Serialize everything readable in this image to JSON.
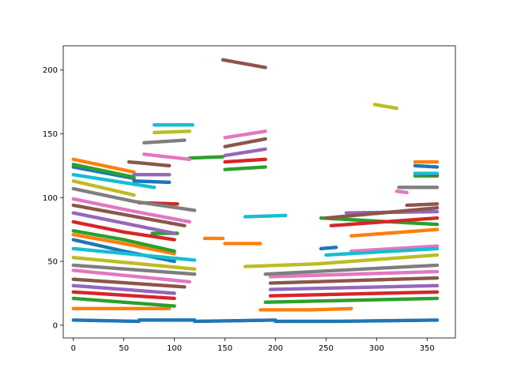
{
  "chart_data": {
    "type": "scatter",
    "title": "",
    "xlabel": "",
    "ylabel": "",
    "xlim": [
      -10,
      378
    ],
    "ylim": [
      -10,
      219
    ],
    "grid": false,
    "legend": "none",
    "xticks": [
      0,
      50,
      100,
      150,
      200,
      250,
      300,
      350
    ],
    "yticks": [
      0,
      50,
      100,
      150,
      200
    ],
    "series": [
      {
        "color": "#1f77b4",
        "segments": [
          {
            "x": [
              0,
              65
            ],
            "y": [
              4,
              3
            ]
          },
          {
            "x": [
              65,
              120
            ],
            "y": [
              4,
              4
            ]
          },
          {
            "x": [
              120,
              200
            ],
            "y": [
              3,
              4
            ]
          },
          {
            "x": [
              200,
              260
            ],
            "y": [
              3,
              3
            ]
          },
          {
            "x": [
              260,
              360
            ],
            "y": [
              3,
              4
            ]
          },
          {
            "x": [
              0,
              50
            ],
            "y": [
              67,
              58
            ]
          },
          {
            "x": [
              50,
              100
            ],
            "y": [
              58,
              50
            ]
          },
          {
            "x": [
              0,
              60
            ],
            "y": [
              124,
              115
            ]
          },
          {
            "x": [
              60,
              95
            ],
            "y": [
              113,
              112
            ]
          },
          {
            "x": [
              245,
              260
            ],
            "y": [
              60,
              61
            ]
          },
          {
            "x": [
              338,
              360
            ],
            "y": [
              125,
              124
            ]
          }
        ]
      },
      {
        "color": "#ff7f0e",
        "segments": [
          {
            "x": [
              0,
              95
            ],
            "y": [
              13,
              13
            ]
          },
          {
            "x": [
              0,
              60
            ],
            "y": [
              130,
              120
            ]
          },
          {
            "x": [
              0,
              50
            ],
            "y": [
              71,
              64
            ]
          },
          {
            "x": [
              50,
              100
            ],
            "y": [
              64,
              56
            ]
          },
          {
            "x": [
              130,
              148
            ],
            "y": [
              68,
              68
            ]
          },
          {
            "x": [
              150,
              185
            ],
            "y": [
              64,
              64
            ]
          },
          {
            "x": [
              185,
              235
            ],
            "y": [
              12,
              12
            ]
          },
          {
            "x": [
              235,
              275
            ],
            "y": [
              12,
              13
            ]
          },
          {
            "x": [
              275,
              360
            ],
            "y": [
              70,
              75
            ]
          },
          {
            "x": [
              338,
              360
            ],
            "y": [
              128,
              128
            ]
          }
        ]
      },
      {
        "color": "#2ca02c",
        "segments": [
          {
            "x": [
              0,
              100
            ],
            "y": [
              21,
              15
            ]
          },
          {
            "x": [
              0,
              50
            ],
            "y": [
              74,
              67
            ]
          },
          {
            "x": [
              50,
              100
            ],
            "y": [
              67,
              58
            ]
          },
          {
            "x": [
              0,
              60
            ],
            "y": [
              126,
              116
            ]
          },
          {
            "x": [
              78,
              103
            ],
            "y": [
              72,
              72
            ]
          },
          {
            "x": [
              115,
              148
            ],
            "y": [
              131,
              132
            ]
          },
          {
            "x": [
              150,
              190
            ],
            "y": [
              122,
              124
            ]
          },
          {
            "x": [
              190,
              360
            ],
            "y": [
              18,
              21
            ]
          },
          {
            "x": [
              245,
              360
            ],
            "y": [
              84,
              79
            ]
          },
          {
            "x": [
              338,
              360
            ],
            "y": [
              117,
              117
            ]
          }
        ]
      },
      {
        "color": "#d62728",
        "segments": [
          {
            "x": [
              0,
              100
            ],
            "y": [
              26,
              21
            ]
          },
          {
            "x": [
              0,
              50
            ],
            "y": [
              81,
              73
            ]
          },
          {
            "x": [
              50,
              100
            ],
            "y": [
              73,
              67
            ]
          },
          {
            "x": [
              65,
              103
            ],
            "y": [
              96,
              95
            ]
          },
          {
            "x": [
              150,
              190
            ],
            "y": [
              128,
              130
            ]
          },
          {
            "x": [
              195,
              360
            ],
            "y": [
              23,
              26
            ]
          },
          {
            "x": [
              255,
              360
            ],
            "y": [
              78,
              84
            ]
          },
          {
            "x": [
              338,
              360
            ],
            "y": [
              119,
              118
            ]
          }
        ]
      },
      {
        "color": "#9467bd",
        "segments": [
          {
            "x": [
              0,
              100
            ],
            "y": [
              31,
              25
            ]
          },
          {
            "x": [
              0,
              50
            ],
            "y": [
              88,
              80
            ]
          },
          {
            "x": [
              50,
              100
            ],
            "y": [
              80,
              72
            ]
          },
          {
            "x": [
              60,
              95
            ],
            "y": [
              118,
              118
            ]
          },
          {
            "x": [
              150,
              190
            ],
            "y": [
              133,
              138
            ]
          },
          {
            "x": [
              195,
              360
            ],
            "y": [
              28,
              31
            ]
          },
          {
            "x": [
              270,
              360
            ],
            "y": [
              88,
              89
            ]
          }
        ]
      },
      {
        "color": "#8c564b",
        "segments": [
          {
            "x": [
              0,
              110
            ],
            "y": [
              36,
              30
            ]
          },
          {
            "x": [
              0,
              55
            ],
            "y": [
              94,
              86
            ]
          },
          {
            "x": [
              55,
              110
            ],
            "y": [
              86,
              78
            ]
          },
          {
            "x": [
              55,
              95
            ],
            "y": [
              128,
              125
            ]
          },
          {
            "x": [
              150,
              190
            ],
            "y": [
              140,
              146
            ]
          },
          {
            "x": [
              148,
              190
            ],
            "y": [
              208,
              202
            ]
          },
          {
            "x": [
              195,
              360
            ],
            "y": [
              33,
              37
            ]
          },
          {
            "x": [
              250,
              360
            ],
            "y": [
              84,
              92
            ]
          },
          {
            "x": [
              330,
              360
            ],
            "y": [
              94,
              95
            ]
          }
        ]
      },
      {
        "color": "#e377c2",
        "segments": [
          {
            "x": [
              0,
              115
            ],
            "y": [
              43,
              34
            ]
          },
          {
            "x": [
              0,
              55
            ],
            "y": [
              99,
              90
            ]
          },
          {
            "x": [
              55,
              115
            ],
            "y": [
              90,
              81
            ]
          },
          {
            "x": [
              70,
              115
            ],
            "y": [
              134,
              130
            ]
          },
          {
            "x": [
              150,
              190
            ],
            "y": [
              147,
              152
            ]
          },
          {
            "x": [
              195,
              360
            ],
            "y": [
              38,
              42
            ]
          },
          {
            "x": [
              275,
              360
            ],
            "y": [
              58,
              62
            ]
          },
          {
            "x": [
              320,
              330
            ],
            "y": [
              105,
              104
            ]
          }
        ]
      },
      {
        "color": "#7f7f7f",
        "segments": [
          {
            "x": [
              0,
              120
            ],
            "y": [
              47,
              40
            ]
          },
          {
            "x": [
              0,
              60
            ],
            "y": [
              107,
              97
            ]
          },
          {
            "x": [
              60,
              120
            ],
            "y": [
              97,
              90
            ]
          },
          {
            "x": [
              70,
              110
            ],
            "y": [
              143,
              145
            ]
          },
          {
            "x": [
              190,
              360
            ],
            "y": [
              40,
              47
            ]
          },
          {
            "x": [
              322,
              360
            ],
            "y": [
              108,
              108
            ]
          }
        ]
      },
      {
        "color": "#bcbd22",
        "segments": [
          {
            "x": [
              0,
              120
            ],
            "y": [
              53,
              44
            ]
          },
          {
            "x": [
              0,
              60
            ],
            "y": [
              113,
              102
            ]
          },
          {
            "x": [
              80,
              115
            ],
            "y": [
              151,
              152
            ]
          },
          {
            "x": [
              170,
              240
            ],
            "y": [
              46,
              48
            ]
          },
          {
            "x": [
              240,
              360
            ],
            "y": [
              48,
              55
            ]
          },
          {
            "x": [
              298,
              320
            ],
            "y": [
              173,
              170
            ]
          }
        ]
      },
      {
        "color": "#17becf",
        "segments": [
          {
            "x": [
              0,
              120
            ],
            "y": [
              60,
              51
            ]
          },
          {
            "x": [
              0,
              80
            ],
            "y": [
              118,
              108
            ]
          },
          {
            "x": [
              80,
              118
            ],
            "y": [
              157,
              157
            ]
          },
          {
            "x": [
              170,
              210
            ],
            "y": [
              85,
              86
            ]
          },
          {
            "x": [
              250,
              360
            ],
            "y": [
              55,
              60
            ]
          },
          {
            "x": [
              338,
              360
            ],
            "y": [
              119,
              119
            ]
          }
        ]
      }
    ]
  }
}
